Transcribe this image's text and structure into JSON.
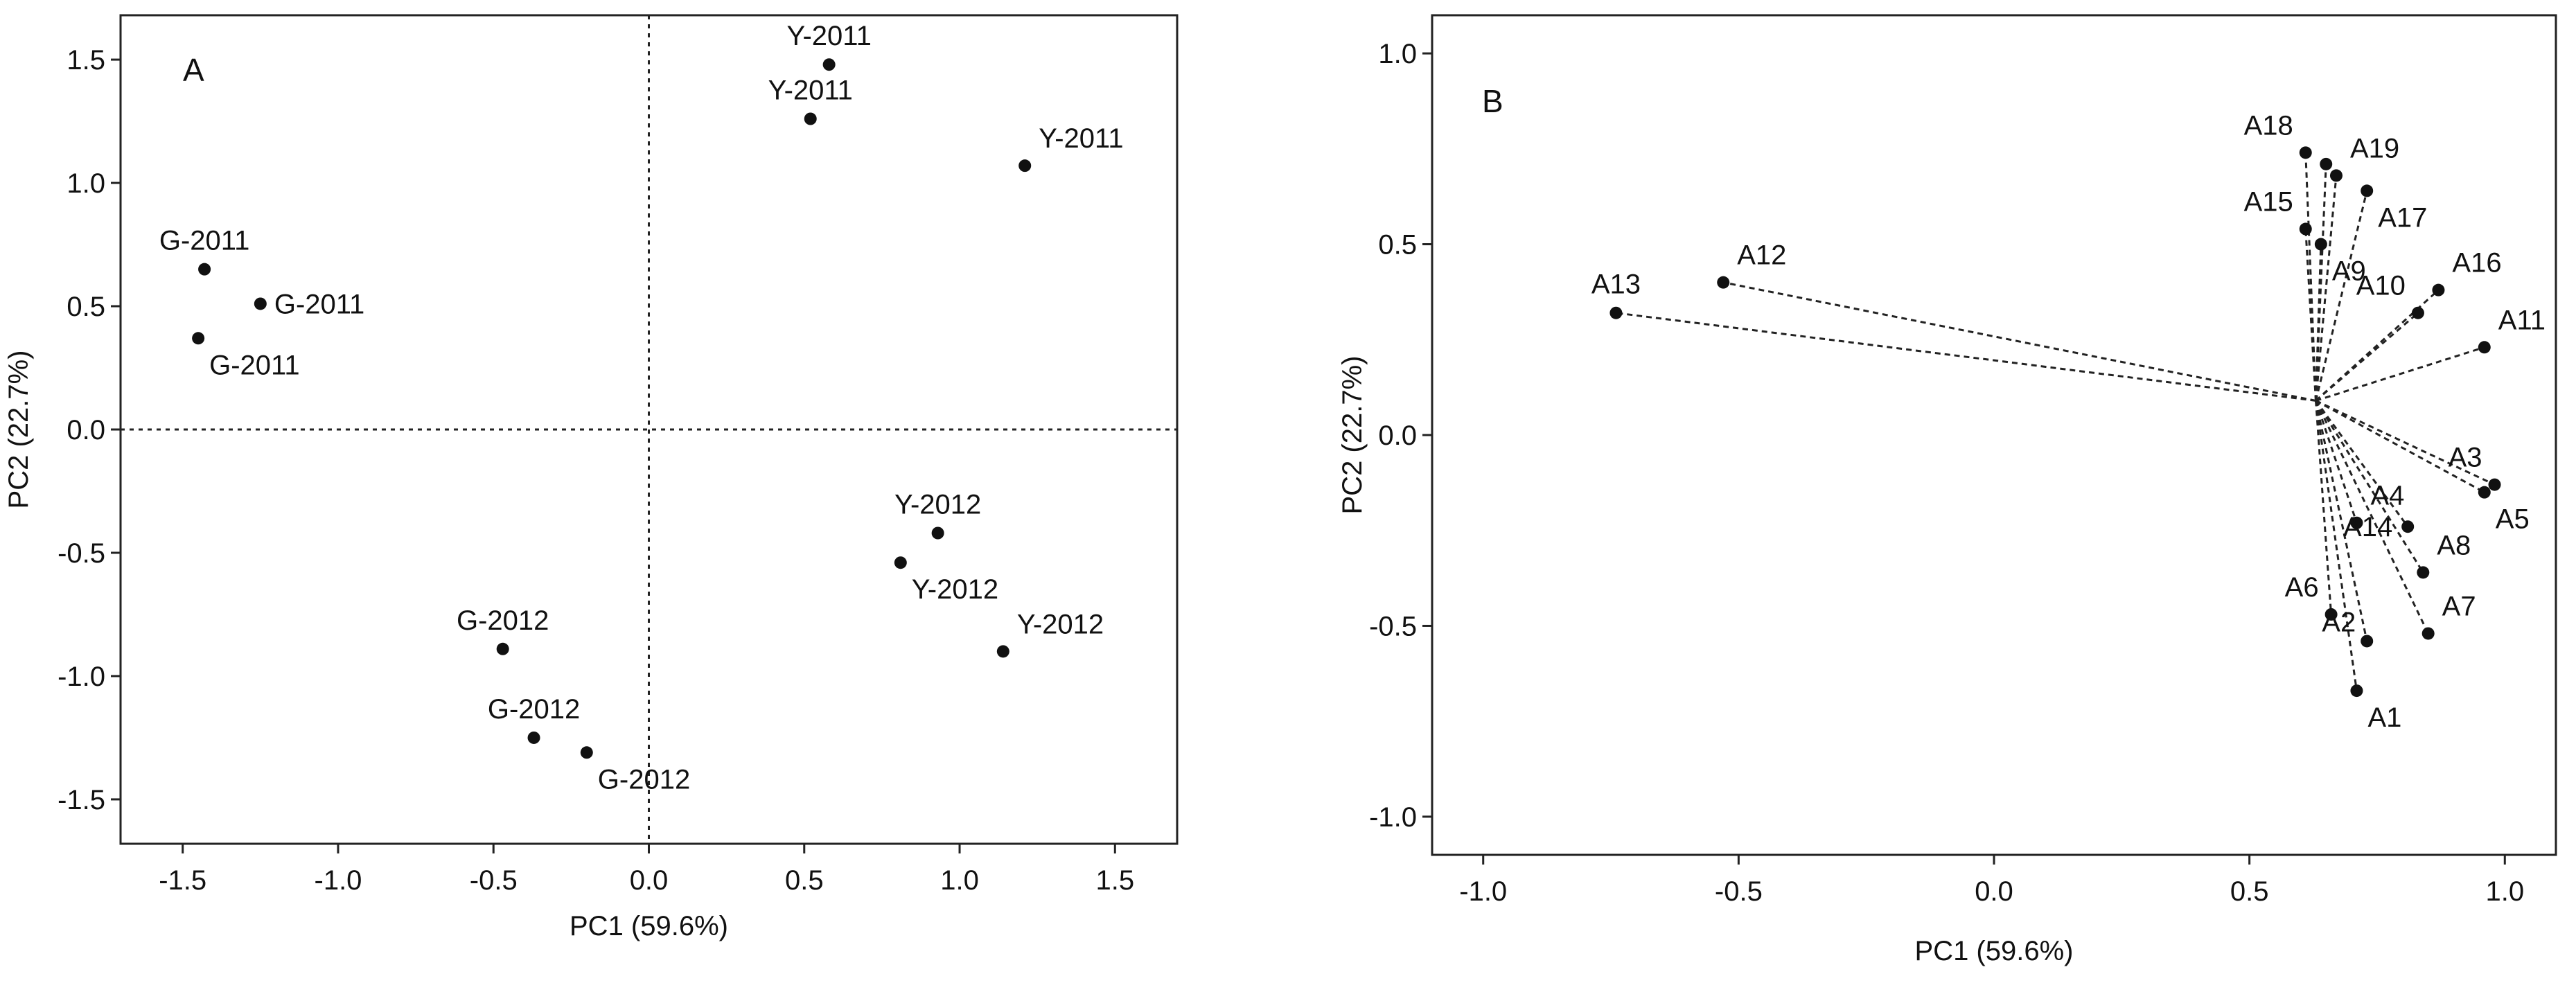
{
  "chart_data": [
    {
      "type": "scatter",
      "panel_label": "A",
      "xlabel": "PC1 (59.6%)",
      "ylabel": "PC2 (22.7%)",
      "xlim": [
        -1.7,
        1.7
      ],
      "ylim": [
        -1.68,
        1.68
      ],
      "xticks": [
        -1.5,
        -1.0,
        -0.5,
        0.0,
        0.5,
        1.0,
        1.5
      ],
      "yticks": [
        -1.5,
        -1.0,
        -0.5,
        0.0,
        0.5,
        1.0,
        1.5
      ],
      "xtick_labels": [
        "-1.5",
        "-1.0",
        "-0.5",
        "0.0",
        "0.5",
        "1.0",
        "1.5"
      ],
      "ytick_labels": [
        "-1.5",
        "-1.0",
        "-0.5",
        "0.0",
        "0.5",
        "1.0",
        "1.5"
      ],
      "reference_lines": {
        "x": 0.0,
        "y": 0.0
      },
      "grid": false,
      "points": [
        {
          "label": "Y-2011",
          "x": 0.58,
          "y": 1.48,
          "label_pos": "above"
        },
        {
          "label": "Y-2011",
          "x": 0.52,
          "y": 1.26,
          "label_pos": "above"
        },
        {
          "label": "Y-2011",
          "x": 1.21,
          "y": 1.07,
          "label_pos": "above-right"
        },
        {
          "label": "G-2011",
          "x": -1.43,
          "y": 0.65,
          "label_pos": "above"
        },
        {
          "label": "G-2011",
          "x": -1.25,
          "y": 0.51,
          "label_pos": "right"
        },
        {
          "label": "G-2011",
          "x": -1.45,
          "y": 0.37,
          "label_pos": "below-right"
        },
        {
          "label": "Y-2012",
          "x": 0.93,
          "y": -0.42,
          "label_pos": "above"
        },
        {
          "label": "Y-2012",
          "x": 0.81,
          "y": -0.54,
          "label_pos": "below-right"
        },
        {
          "label": "Y-2012",
          "x": 1.14,
          "y": -0.9,
          "label_pos": "above-right"
        },
        {
          "label": "G-2012",
          "x": -0.47,
          "y": -0.89,
          "label_pos": "above"
        },
        {
          "label": "G-2012",
          "x": -0.37,
          "y": -1.25,
          "label_pos": "above"
        },
        {
          "label": "G-2012",
          "x": -0.2,
          "y": -1.31,
          "label_pos": "below-right"
        }
      ]
    },
    {
      "type": "scatter",
      "panel_label": "B",
      "xlabel": "PC1 (59.6%)",
      "ylabel": "PC2 (22.7%)",
      "xlim": [
        -1.1,
        1.1
      ],
      "ylim": [
        -1.1,
        1.1
      ],
      "xticks": [
        -1.0,
        -0.5,
        0.0,
        0.5,
        1.0
      ],
      "yticks": [
        -1.0,
        -0.5,
        0.0,
        0.5,
        1.0
      ],
      "xtick_labels": [
        "-1.0",
        "-0.5",
        "0.0",
        "0.5",
        "1.0"
      ],
      "ytick_labels": [
        "-1.0",
        "-0.5",
        "0.0",
        "0.5",
        "1.0"
      ],
      "vector_origin": {
        "x": 0.63,
        "y": 0.09
      },
      "grid": false,
      "points": [
        {
          "label": "A1",
          "x": 0.71,
          "y": -0.67,
          "label_pos": "below-right"
        },
        {
          "label": "A2",
          "x": 0.73,
          "y": -0.54,
          "label_pos": "left-above"
        },
        {
          "label": "A3",
          "x": 0.98,
          "y": -0.13,
          "label_pos": "above-left"
        },
        {
          "label": "A4",
          "x": 0.71,
          "y": -0.23,
          "label_pos": "above-right"
        },
        {
          "label": "A5",
          "x": 0.96,
          "y": -0.15,
          "label_pos": "below-right"
        },
        {
          "label": "A6",
          "x": 0.66,
          "y": -0.47,
          "label_pos": "above-left"
        },
        {
          "label": "A7",
          "x": 0.85,
          "y": -0.52,
          "label_pos": "above-right"
        },
        {
          "label": "A8",
          "x": 0.84,
          "y": -0.36,
          "label_pos": "above-right"
        },
        {
          "label": "A9",
          "x": 0.64,
          "y": 0.5,
          "label_pos": "below-right"
        },
        {
          "label": "A10",
          "x": 0.83,
          "y": 0.32,
          "label_pos": "above-left"
        },
        {
          "label": "A11",
          "x": 0.96,
          "y": 0.23,
          "label_pos": "above-right"
        },
        {
          "label": "A12",
          "x": -0.53,
          "y": 0.4,
          "label_pos": "above-right"
        },
        {
          "label": "A13",
          "x": -0.74,
          "y": 0.32,
          "label_pos": "above"
        },
        {
          "label": "A14",
          "x": 0.81,
          "y": -0.24,
          "label_pos": "left"
        },
        {
          "label": "A15",
          "x": 0.61,
          "y": 0.54,
          "label_pos": "above-left"
        },
        {
          "label": "A16",
          "x": 0.87,
          "y": 0.38,
          "label_pos": "above-right"
        },
        {
          "label": "A17",
          "x": 0.73,
          "y": 0.64,
          "label_pos": "below-right"
        },
        {
          "label": "A18",
          "x": 0.61,
          "y": 0.74,
          "label_pos": "above-left"
        },
        {
          "label": "A19",
          "x": 0.67,
          "y": 0.68,
          "label_pos": "above-right"
        },
        {
          "label": "",
          "x": 0.65,
          "y": 0.71,
          "label_pos": "none"
        }
      ]
    }
  ]
}
